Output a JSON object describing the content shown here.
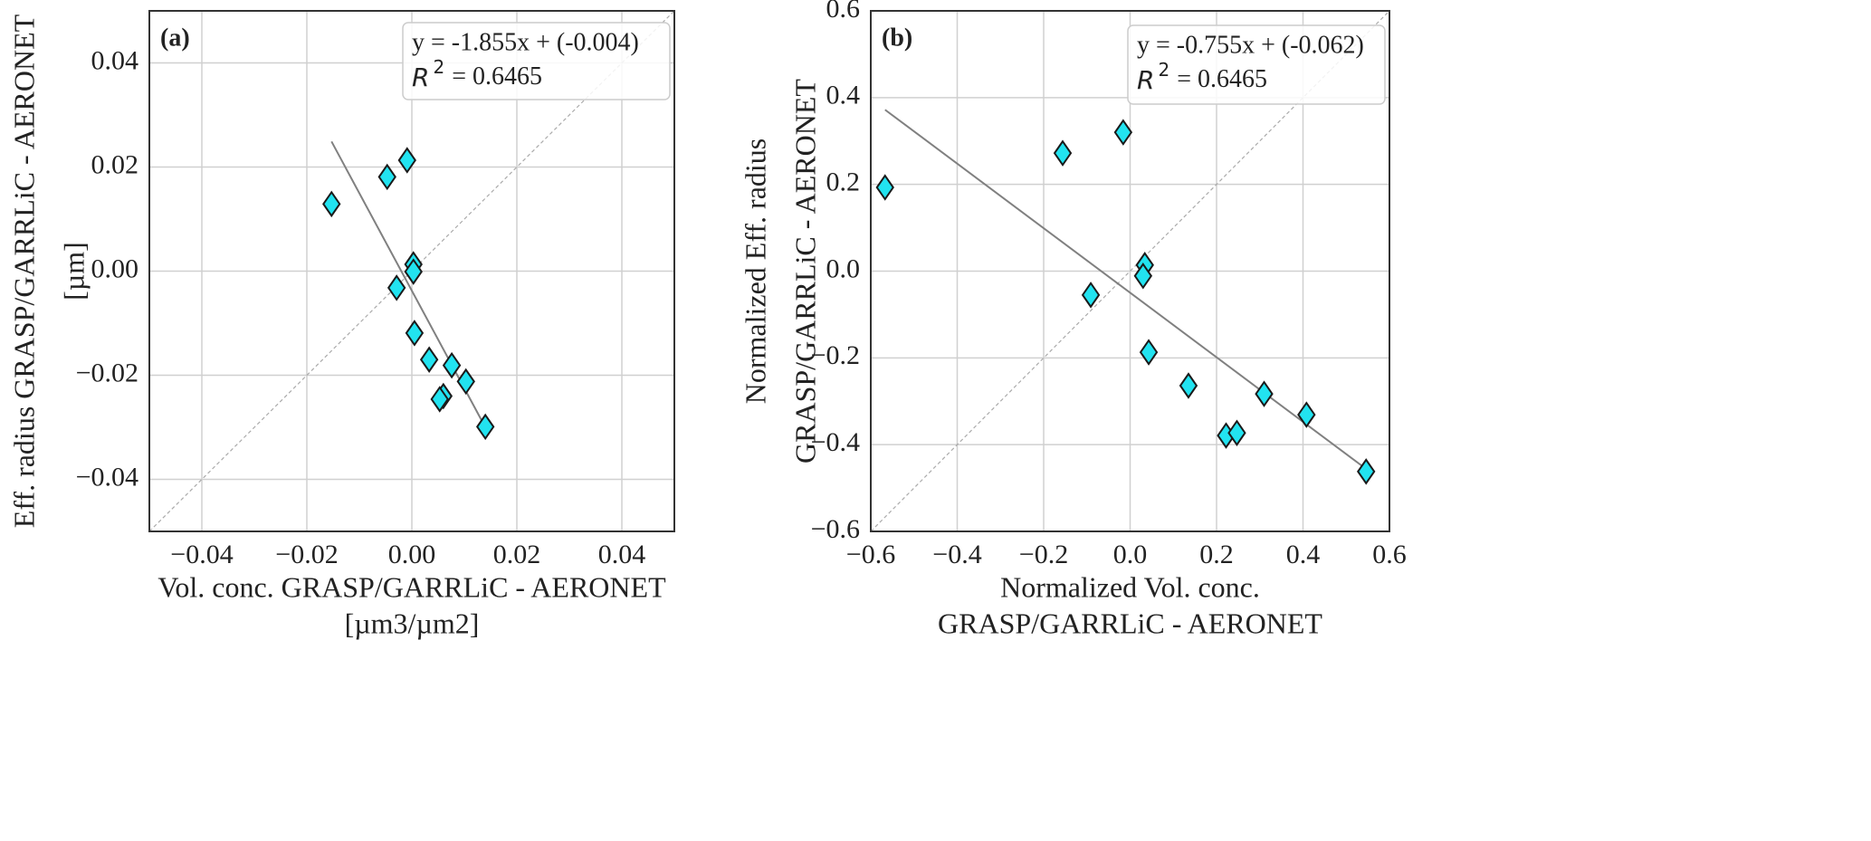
{
  "chart_data": [
    {
      "type": "scatter",
      "panel_label": "(a)",
      "xlabel": [
        "Vol. conc. GRASP/GARRLiC - AERONET",
        "[µm3/µm2]"
      ],
      "ylabel": [
        "Eff. radius GRASP/GARRLiC - AERONET",
        "[µm]"
      ],
      "equation": "y = -1.855x + (-0.004)",
      "r2": {
        "symbol": "R",
        "power": "2",
        "text": "= 0.6465"
      },
      "xlim": [
        -0.05,
        0.05
      ],
      "ylim": [
        -0.05,
        0.05
      ],
      "xticks": [
        {
          "value": -0.04,
          "label": "−0.04"
        },
        {
          "value": -0.02,
          "label": "−0.02"
        },
        {
          "value": 0,
          "label": "0.00"
        },
        0.02,
        0.04
      ],
      "yticks": [
        {
          "value": -0.04,
          "label": "−0.04"
        },
        {
          "value": -0.02,
          "label": "−0.02"
        },
        {
          "value": 0,
          "label": "0.00"
        },
        0.02,
        0.04
      ],
      "grid": true,
      "points": {
        "color": "#22e3f0",
        "x": [
          -0.0153,
          -0.0047,
          -0.0009,
          0.0003,
          0.0003,
          -0.0029,
          0.0005,
          0.0033,
          0.0076,
          0.0103,
          0.006,
          0.0053,
          0.014
        ],
        "values": [
          0.0129,
          0.0181,
          0.0213,
          0.0013,
          -0.0001,
          -0.0032,
          -0.0119,
          -0.017,
          -0.0181,
          -0.0212,
          -0.024,
          -0.0246,
          -0.0299
        ]
      },
      "fit_line": {
        "color": "#808080",
        "x": [
          -0.0153,
          0.014
        ],
        "values": [
          0.0249,
          -0.03
        ]
      },
      "identity_line": {
        "color": "#aaaaaa",
        "x": [
          -0.05,
          0.05
        ],
        "values": [
          -0.05,
          0.05
        ]
      }
    },
    {
      "type": "scatter",
      "panel_label": "(b)",
      "xlabel": [
        "Normalized Vol. conc.",
        "GRASP/GARRLiC - AERONET"
      ],
      "ylabel": [
        "Normalized Eff. radius",
        "GRASP/GARRLiC - AERONET"
      ],
      "equation": "y = -0.755x + (-0.062)",
      "r2": {
        "symbol": "R",
        "power": "2",
        "text": "= 0.6465"
      },
      "xlim": [
        -0.6,
        0.6
      ],
      "ylim": [
        -0.6,
        0.6
      ],
      "xticks": [
        {
          "value": -0.6,
          "label": "−0.6"
        },
        {
          "value": -0.4,
          "label": "−0.4"
        },
        {
          "value": -0.2,
          "label": "−0.2"
        },
        {
          "value": 0,
          "label": "0.0"
        },
        0.2,
        0.4,
        0.6
      ],
      "yticks": [
        {
          "value": -0.6,
          "label": "−0.6"
        },
        {
          "value": -0.4,
          "label": "−0.4"
        },
        {
          "value": -0.2,
          "label": "−0.2"
        },
        {
          "value": 0,
          "label": "0.0"
        },
        0.2,
        0.4,
        0.6
      ],
      "grid": true,
      "points": {
        "color": "#22e3f0",
        "x": [
          -0.567,
          -0.156,
          -0.016,
          0.034,
          0.03,
          -0.091,
          0.043,
          0.135,
          0.222,
          0.247,
          0.31,
          0.408,
          0.546
        ],
        "values": [
          0.193,
          0.272,
          0.32,
          0.014,
          -0.011,
          -0.055,
          -0.187,
          -0.264,
          -0.379,
          -0.373,
          -0.283,
          -0.331,
          -0.462
        ]
      },
      "fit_line": {
        "color": "#808080",
        "x": [
          -0.567,
          0.546
        ],
        "values": [
          0.372,
          -0.456
        ]
      },
      "identity_line": {
        "color": "#aaaaaa",
        "x": [
          -0.6,
          0.6
        ],
        "values": [
          -0.6,
          0.6
        ]
      }
    }
  ]
}
